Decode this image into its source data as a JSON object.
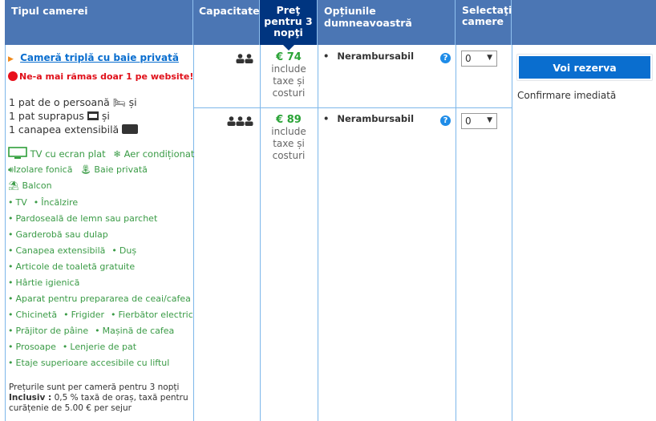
{
  "header": {
    "room_type": "Tipul camerei",
    "capacity": "Capacitate",
    "price_l1": "Preţ",
    "price_l2": "pentru 3",
    "price_l3": "nopţi",
    "options": "Opțiunile dumneavoastră",
    "select_l1": "Selectaţi",
    "select_l2": "camere"
  },
  "room": {
    "name": "Cameră triplă cu baie privată",
    "scarcity": "Ne-a mai rămas doar 1 pe website!",
    "beds": [
      "1 pat de o persoană",
      "1 pat suprapus",
      "1 canapea extensibilă"
    ],
    "and": "și",
    "facilities": [
      "TV cu ecran plat",
      "Aer condiționat",
      "Izolare fonică",
      "Baie privată",
      "Balcon"
    ],
    "amenity_lines": [
      [
        "TV",
        "Încălzire"
      ],
      [
        "Pardoseală de lemn sau parchet"
      ],
      [
        "Garderobă sau dulap"
      ],
      [
        "Canapea extensibilă",
        "Duș"
      ],
      [
        "Articole de toaletă gratuite"
      ],
      [
        "Hârtie igienică"
      ],
      [
        "Aparat pentru prepararea de ceai/cafea"
      ],
      [
        "Chicinetă",
        "Frigider",
        "Fierbător electric"
      ],
      [
        "Prăjitor de pâine",
        "Mașină de cafea"
      ],
      [
        "Prosoape",
        "Lenjerie de pat"
      ],
      [
        "Etaje superioare accesibile cu liftul"
      ]
    ],
    "note": "Prețurile sunt per cameră pentru 3 nopți",
    "incl_label": "Inclusiv :",
    "incl_text": " 0,5 % taxă de oraș, taxă pentru curățenie de 5.00 € per sejur"
  },
  "rows": [
    {
      "price": "€ 74",
      "sub": [
        "include",
        "taxe și",
        "costuri"
      ],
      "option": "Nerambursabil",
      "qty": "0",
      "guests": 2
    },
    {
      "price": "€ 89",
      "sub": [
        "include",
        "taxe și",
        "costuri"
      ],
      "option": "Nerambursabil",
      "qty": "0",
      "guests": 3
    }
  ],
  "reserve": {
    "button": "Voi rezerva",
    "confirm": "Confirmare imediată"
  },
  "colors": {
    "header": "#4b76b4",
    "price_header": "#003580",
    "green": "#2f9e3a",
    "button": "#0a6ecf"
  }
}
